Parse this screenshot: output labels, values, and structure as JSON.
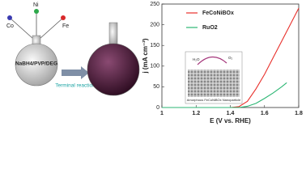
{
  "diagram": {
    "elements": [
      "Co",
      "Ni",
      "Fe"
    ],
    "solution": "NaBH4/PVP/DEG",
    "arrow_label": "Terminal reaction"
  },
  "inset": {
    "reactant": "H₂O",
    "product": "O₂",
    "caption": "Amorphous FeCoNiBOx Nanoparticle"
  },
  "chart_data": {
    "type": "line",
    "xlabel": "E (V vs. RHE)",
    "ylabel": "j (mA cm⁻²)",
    "xlim": [
      1.0,
      1.8
    ],
    "xticks": [
      1.0,
      1.2,
      1.4,
      1.6,
      1.8
    ],
    "ylim": [
      0,
      250
    ],
    "yticks": [
      0,
      50,
      100,
      150,
      200,
      250
    ],
    "legend": "upper left",
    "series": [
      {
        "name": "FeCoNiBOx",
        "color": "#e8302b",
        "x": [
          1.0,
          1.4,
          1.45,
          1.5,
          1.55,
          1.6,
          1.65,
          1.7,
          1.75,
          1.8
        ],
        "values": [
          0,
          0,
          2,
          15,
          45,
          80,
          120,
          160,
          200,
          240
        ]
      },
      {
        "name": "RuO2",
        "color": "#2bb673",
        "x": [
          1.0,
          1.45,
          1.5,
          1.55,
          1.6,
          1.65,
          1.7,
          1.73
        ],
        "values": [
          0,
          0,
          3,
          10,
          22,
          35,
          50,
          60
        ]
      }
    ]
  }
}
